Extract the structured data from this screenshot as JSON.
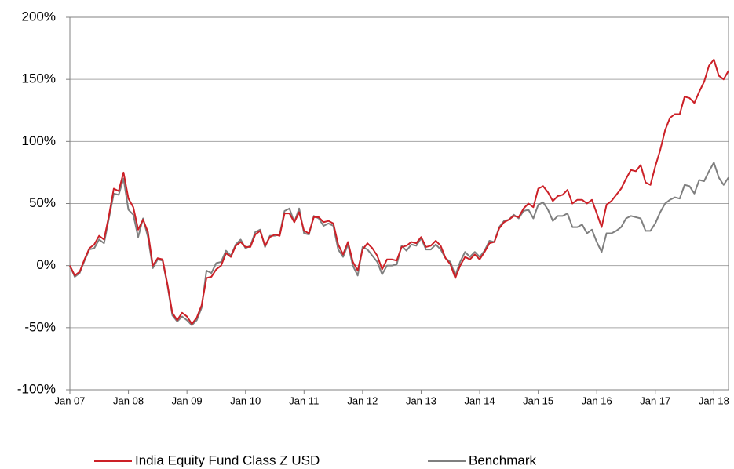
{
  "chart_data": {
    "type": "line",
    "categories": [
      "Jan 07",
      null,
      null,
      null,
      null,
      null,
      null,
      null,
      null,
      null,
      null,
      null,
      "Jan 08",
      null,
      null,
      null,
      null,
      null,
      null,
      null,
      null,
      null,
      null,
      null,
      "Jan 09",
      null,
      null,
      null,
      null,
      null,
      null,
      null,
      null,
      null,
      null,
      null,
      "Jan 10",
      null,
      null,
      null,
      null,
      null,
      null,
      null,
      null,
      null,
      null,
      null,
      "Jan 11",
      null,
      null,
      null,
      null,
      null,
      null,
      null,
      null,
      null,
      null,
      null,
      "Jan 12",
      null,
      null,
      null,
      null,
      null,
      null,
      null,
      null,
      null,
      null,
      null,
      "Jan 13",
      null,
      null,
      null,
      null,
      null,
      null,
      null,
      null,
      null,
      null,
      null,
      "Jan 14",
      null,
      null,
      null,
      null,
      null,
      null,
      null,
      null,
      null,
      null,
      null,
      "Jan 15",
      null,
      null,
      null,
      null,
      null,
      null,
      null,
      null,
      null,
      null,
      null,
      "Jan 16",
      null,
      null,
      null,
      null,
      null,
      null,
      null,
      null,
      null,
      null,
      null,
      "Jan 17",
      null,
      null,
      null,
      null,
      null,
      null,
      null,
      null,
      null,
      null,
      null,
      "Jan 18",
      null,
      null,
      null
    ],
    "series": [
      {
        "name": "India Equity Fund Class Z USD",
        "color": "#cc2027",
        "values": [
          0,
          -8,
          -5,
          5,
          14,
          17,
          24,
          21,
          40,
          62,
          60,
          75,
          54,
          47,
          29,
          37,
          27,
          0,
          6,
          5,
          -15,
          -38,
          -44,
          -38,
          -41,
          -47,
          -42,
          -32,
          -10,
          -9,
          -3,
          0,
          10,
          7,
          16,
          19,
          15,
          15,
          25,
          28,
          16,
          23,
          25,
          24,
          42,
          42,
          35,
          43,
          28,
          26,
          39,
          39,
          35,
          36,
          34,
          17,
          9,
          19,
          3,
          -4,
          13,
          18,
          14,
          8,
          -3,
          5,
          5,
          4,
          15,
          16,
          19,
          18,
          23,
          15,
          16,
          20,
          16,
          6,
          1,
          -10,
          0,
          7,
          5,
          9,
          5,
          11,
          18,
          19,
          30,
          35,
          37,
          40,
          39,
          46,
          50,
          47,
          62,
          64,
          59,
          52,
          56,
          57,
          61,
          50,
          53,
          53,
          50,
          53,
          42,
          31,
          49,
          52,
          57,
          62,
          70,
          77,
          76,
          81,
          67,
          65,
          80,
          93,
          109,
          119,
          122,
          122,
          136,
          135,
          131,
          140,
          148,
          161,
          166,
          153,
          150,
          157
        ]
      },
      {
        "name": "Benchmark",
        "color": "#7f7f7f",
        "values": [
          0,
          -9,
          -6,
          4,
          13,
          14,
          21,
          18,
          38,
          58,
          57,
          70,
          45,
          41,
          23,
          38,
          23,
          -2,
          5,
          4,
          -16,
          -40,
          -45,
          -41,
          -44,
          -48,
          -44,
          -34,
          -4,
          -6,
          2,
          3,
          12,
          8,
          17,
          21,
          14,
          16,
          27,
          29,
          15,
          24,
          24,
          25,
          44,
          46,
          35,
          46,
          26,
          25,
          40,
          38,
          32,
          34,
          32,
          13,
          7,
          17,
          0,
          -8,
          15,
          13,
          8,
          3,
          -7,
          0,
          0,
          1,
          16,
          12,
          17,
          16,
          22,
          13,
          13,
          17,
          13,
          6,
          3,
          -8,
          3,
          11,
          7,
          11,
          7,
          12,
          20,
          19,
          31,
          36,
          37,
          41,
          38,
          44,
          45,
          38,
          49,
          51,
          45,
          36,
          40,
          40,
          42,
          31,
          31,
          33,
          26,
          29,
          19,
          11,
          26,
          26,
          28,
          31,
          38,
          40,
          39,
          38,
          28,
          28,
          34,
          43,
          50,
          53,
          55,
          54,
          65,
          64,
          58,
          69,
          68,
          76,
          83,
          71,
          65,
          71
        ]
      }
    ],
    "ylim": [
      -100,
      200
    ],
    "yticks": [
      {
        "value": -100,
        "label": "-100%"
      },
      {
        "value": -50,
        "label": "-50%"
      },
      {
        "value": 0,
        "label": "0%"
      },
      {
        "value": 50,
        "label": "50%"
      },
      {
        "value": 100,
        "label": "100%"
      },
      {
        "value": 150,
        "label": "150%"
      },
      {
        "value": 200,
        "label": "200%"
      }
    ],
    "grid": true,
    "legend": "bottom"
  }
}
